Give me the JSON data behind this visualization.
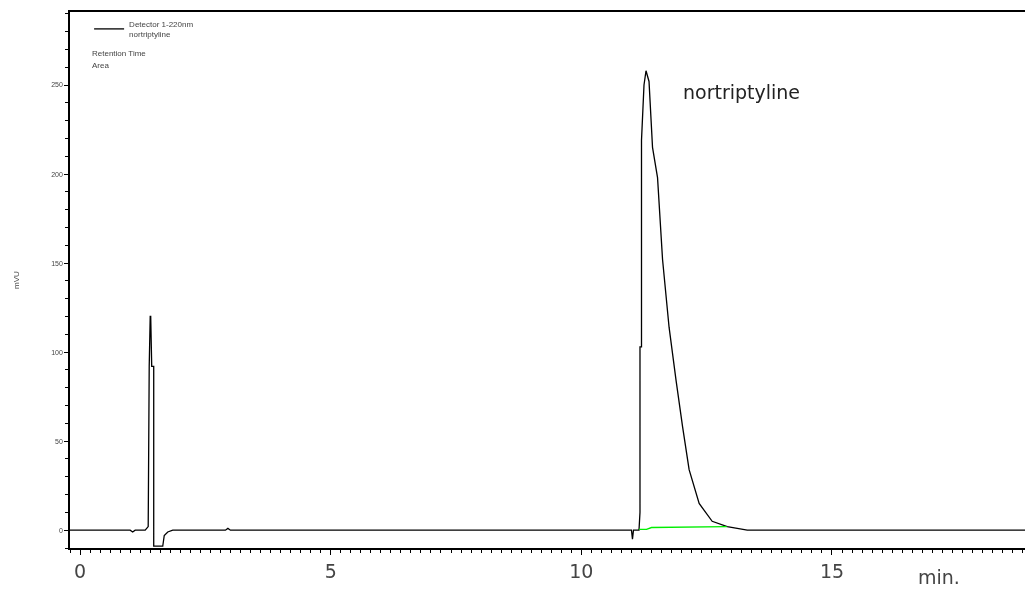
{
  "chart_data": {
    "type": "line",
    "ylabel": "mVU",
    "xlabel": "min.",
    "xlim": [
      -0.2,
      18.85
    ],
    "xticks": [
      0,
      5,
      10,
      15
    ],
    "ylim": [
      -10,
      291
    ],
    "yticks": [
      0,
      50,
      100,
      150,
      200,
      250
    ],
    "grid": false,
    "legend": "top left",
    "marker": "none",
    "line_style": "solid",
    "series": [
      {
        "name": "Detector 1-220nm\nnortriptyline",
        "color": "#000000",
        "x": [
          -0.2,
          1.0,
          1.05,
          1.1,
          1.3,
          1.36,
          1.38,
          1.4,
          1.41,
          1.43,
          1.47,
          1.47,
          1.65,
          1.68,
          1.75,
          1.85,
          2.9,
          2.95,
          3.0,
          11.0,
          11.02,
          11.04,
          11.15,
          11.17,
          11.17,
          11.2,
          11.2,
          11.25,
          11.29,
          11.35,
          11.42,
          11.52,
          11.62,
          11.75,
          11.89,
          12.02,
          12.15,
          12.35,
          12.61,
          12.91,
          13.31,
          18.85
        ],
        "values": [
          0,
          0,
          -1,
          0,
          0,
          2,
          92,
          120,
          120,
          92,
          92,
          -9,
          -9,
          -3,
          -1,
          0,
          0,
          1,
          0,
          0,
          -5,
          0,
          0,
          10,
          103,
          103,
          219,
          250,
          258,
          252,
          215,
          198,
          152,
          114,
          84,
          58,
          34,
          15,
          5,
          2,
          0,
          0
        ]
      },
      {
        "color": "#00ee00",
        "x": [
          11.15,
          11.3,
          11.4,
          12.9
        ],
        "values": [
          0.5,
          0.5,
          1.5,
          2
        ]
      }
    ],
    "annotations": [
      "Retention Time",
      "Area",
      "nortriptyline"
    ]
  }
}
